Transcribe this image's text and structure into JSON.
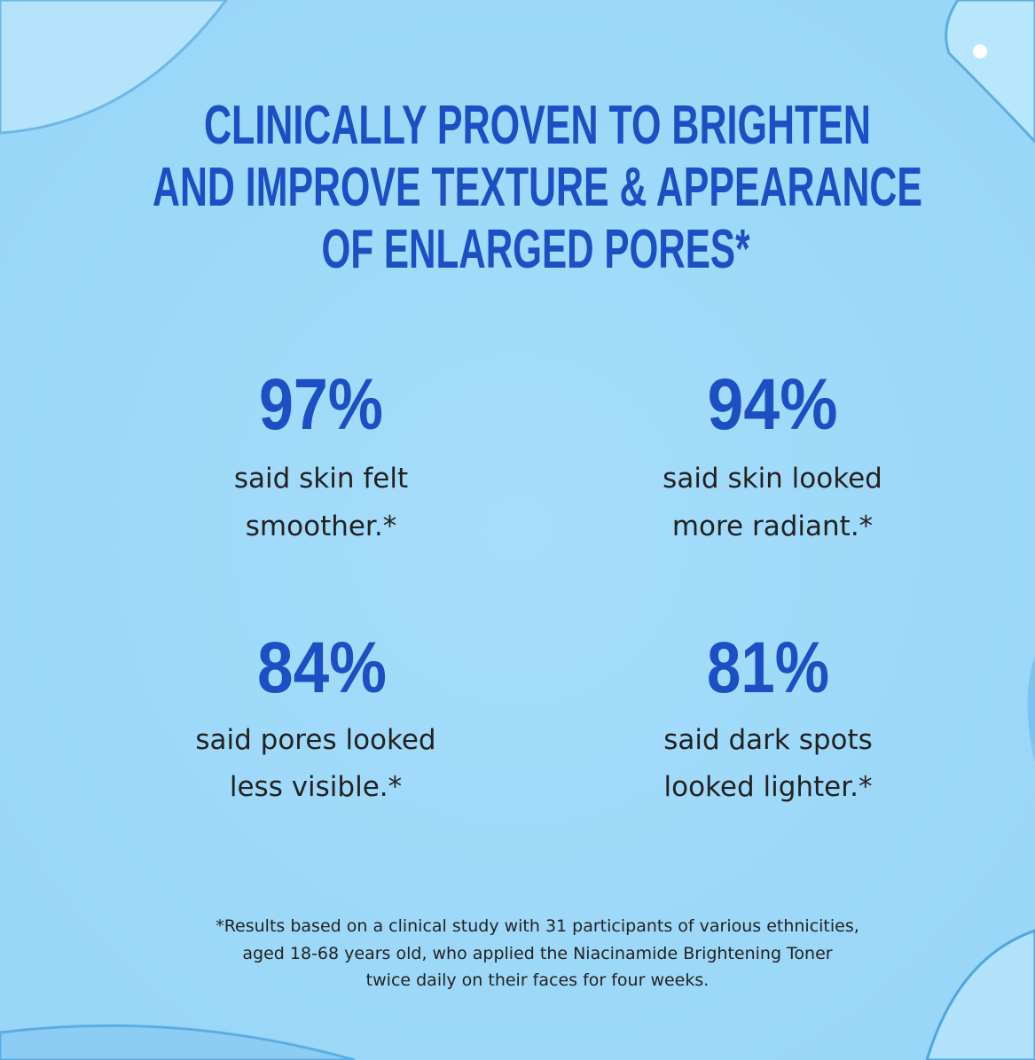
{
  "header": {
    "title_lines": [
      "CLINICALLY PROVEN TO BRIGHTEN",
      "AND IMPROVE TEXTURE & APPEARANCE",
      "OF ENLARGED PORES*"
    ]
  },
  "stats": [
    {
      "value": "97%",
      "lines": [
        "said skin felt",
        "smoother.*"
      ]
    },
    {
      "value": "94%",
      "lines": [
        "said skin looked",
        "more radiant.*"
      ]
    },
    {
      "value": "84%",
      "lines": [
        "said pores looked",
        "less visible.*"
      ]
    },
    {
      "value": "81%",
      "lines": [
        "said dark spots",
        "looked lighter.*"
      ]
    }
  ],
  "footnote": {
    "lines": [
      "*Results based on a clinical study with 31 participants of various ethnicities,",
      "aged 18-68 years old, who applied the Niacinamide Brightening Toner",
      "twice daily on their faces for four weeks."
    ]
  }
}
